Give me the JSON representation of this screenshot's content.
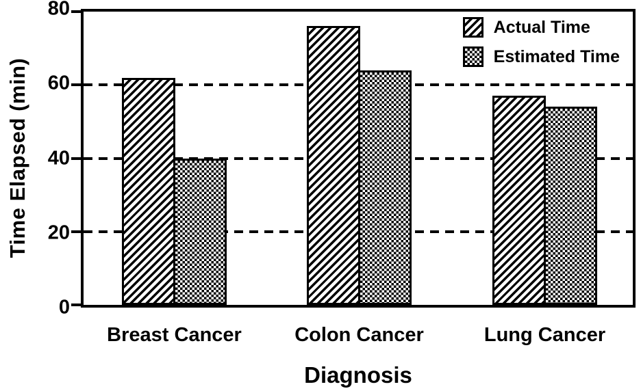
{
  "figure": {
    "background_color": "#ffffff",
    "ink_color": "#000000"
  },
  "chart_data": {
    "type": "bar",
    "title": "",
    "xlabel": "Diagnosis",
    "ylabel": "Time Elapsed (min)",
    "categories": [
      "Breast Cancer",
      "Colon Cancer",
      "Lung Cancer"
    ],
    "series": [
      {
        "name": "Actual Time",
        "pattern": "diagonal-hatch",
        "values": [
          62,
          76,
          57
        ]
      },
      {
        "name": "Estimated Time",
        "pattern": "checkerboard",
        "values": [
          40,
          64,
          54
        ]
      }
    ],
    "ylim": [
      0,
      80
    ],
    "yticks": [
      0,
      20,
      40,
      60,
      80
    ],
    "grid": "horizontal-dashed",
    "gridline_values": [
      20,
      40,
      60
    ],
    "legend_position": "top-right-inside"
  }
}
